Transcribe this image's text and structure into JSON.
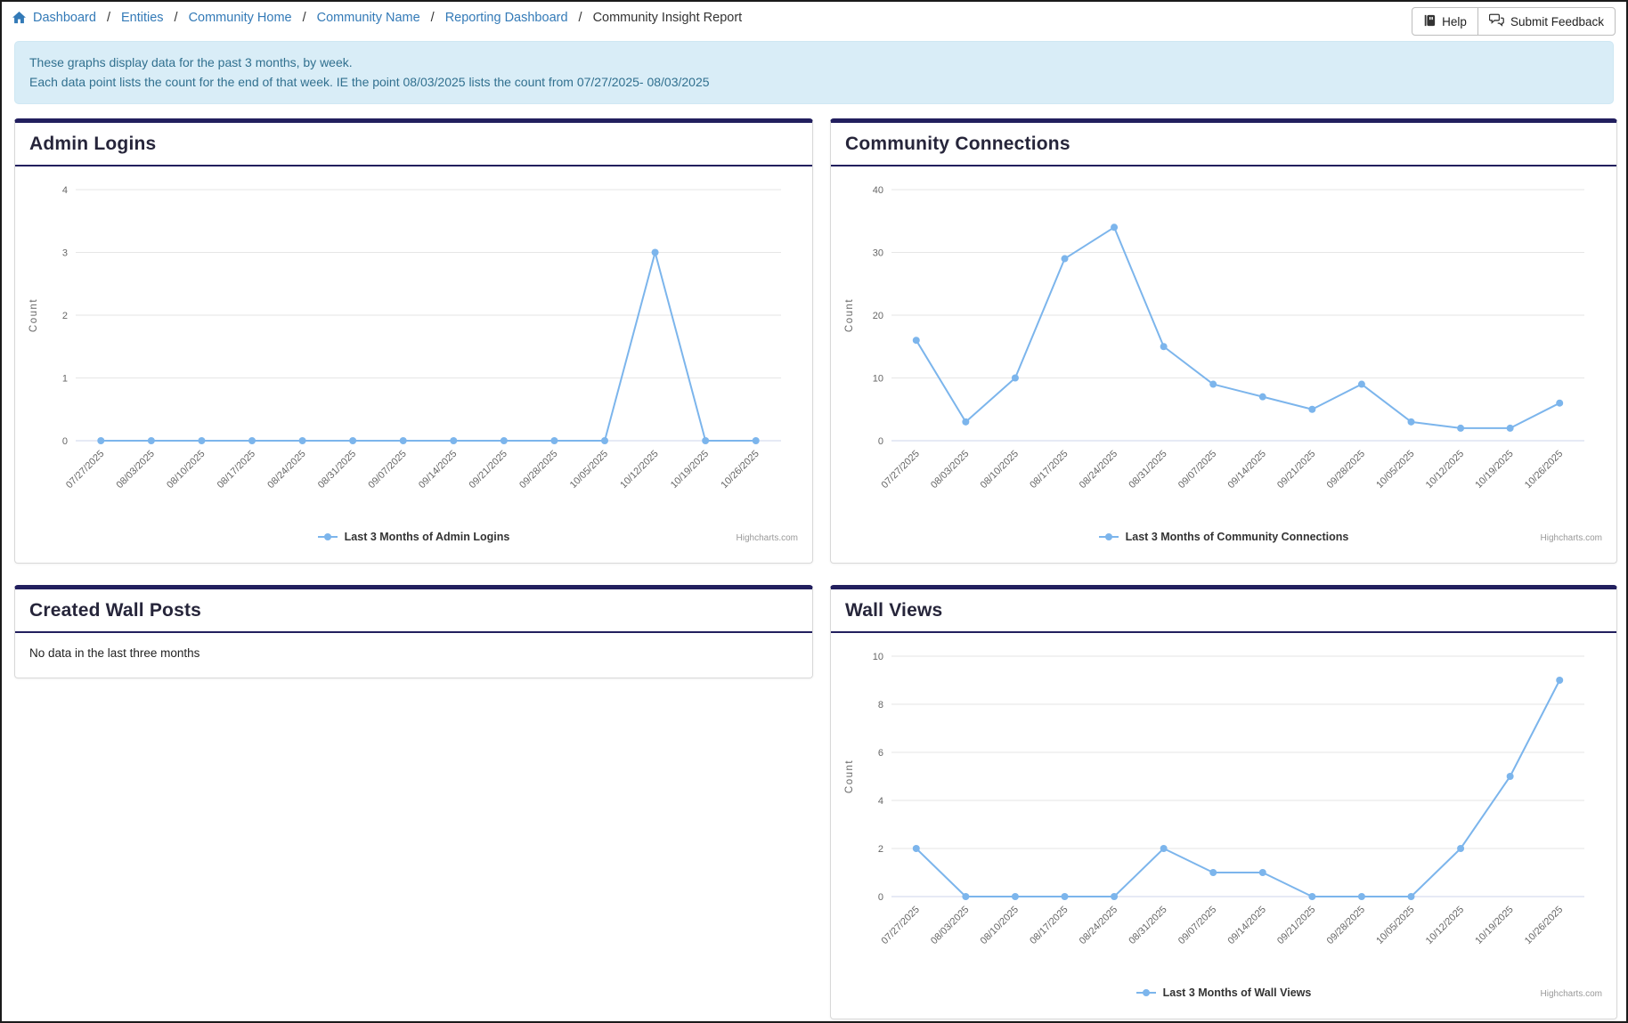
{
  "breadcrumb": {
    "items": [
      "Dashboard",
      "Entities",
      "Community Home",
      "Community Name",
      "Reporting Dashboard"
    ],
    "separator": "/",
    "current": "Community Insight Report"
  },
  "toolbar": {
    "help_label": "Help",
    "feedback_label": "Submit Feedback"
  },
  "banner": {
    "line1": "These graphs display data for the past 3 months, by week.",
    "line2": "Each data point lists the count for the end of that week. IE the point 08/03/2025 lists the count from 07/27/2025- 08/03/2025"
  },
  "panels": {
    "admin_logins": {
      "title": "Admin Logins"
    },
    "community_connections": {
      "title": "Community Connections"
    },
    "created_wall_posts": {
      "title": "Created Wall Posts",
      "empty_message": "No data in the last three months"
    },
    "wall_views": {
      "title": "Wall Views"
    }
  },
  "colors": {
    "accent_navy": "#221f5e",
    "line_blue": "#7cb5ec",
    "banner_bg": "#d9edf7",
    "banner_text": "#31708f",
    "link_blue": "#337ab7",
    "grid_line": "#e6e6e6",
    "axis_line": "#ccd6eb"
  },
  "chart_data": [
    {
      "type": "line",
      "title": "Admin Logins",
      "legend": "Last 3 Months of Admin Logins",
      "credits": "Highcharts.com",
      "xlabel": "",
      "ylabel": "Count",
      "ylim": [
        0,
        4
      ],
      "yticks": [
        0,
        1,
        2,
        3,
        4
      ],
      "grid": true,
      "legend_position": "bottom-center",
      "line_color": "#7cb5ec",
      "categories": [
        "07/27/2025",
        "08/03/2025",
        "08/10/2025",
        "08/17/2025",
        "08/24/2025",
        "08/31/2025",
        "09/07/2025",
        "09/14/2025",
        "09/21/2025",
        "09/28/2025",
        "10/05/2025",
        "10/12/2025",
        "10/19/2025",
        "10/26/2025"
      ],
      "values": [
        0,
        0,
        0,
        0,
        0,
        0,
        0,
        0,
        0,
        0,
        0,
        3,
        0,
        0
      ]
    },
    {
      "type": "line",
      "title": "Community Connections",
      "legend": "Last 3 Months of Community Connections",
      "credits": "Highcharts.com",
      "xlabel": "",
      "ylabel": "Count",
      "ylim": [
        0,
        40
      ],
      "yticks": [
        0,
        10,
        20,
        30,
        40
      ],
      "grid": true,
      "legend_position": "bottom-center",
      "line_color": "#7cb5ec",
      "categories": [
        "07/27/2025",
        "08/03/2025",
        "08/10/2025",
        "08/17/2025",
        "08/24/2025",
        "08/31/2025",
        "09/07/2025",
        "09/14/2025",
        "09/21/2025",
        "09/28/2025",
        "10/05/2025",
        "10/12/2025",
        "10/19/2025",
        "10/26/2025"
      ],
      "values": [
        16,
        3,
        10,
        29,
        34,
        15,
        9,
        7,
        5,
        9,
        3,
        2,
        2,
        6
      ]
    },
    {
      "type": "line",
      "title": "Wall Views",
      "legend": "Last 3 Months of Wall Views",
      "credits": "Highcharts.com",
      "xlabel": "",
      "ylabel": "Count",
      "ylim": [
        0,
        10
      ],
      "yticks": [
        0,
        2,
        4,
        6,
        8,
        10
      ],
      "grid": true,
      "legend_position": "bottom-center",
      "line_color": "#7cb5ec",
      "categories": [
        "07/27/2025",
        "08/03/2025",
        "08/10/2025",
        "08/17/2025",
        "08/24/2025",
        "08/31/2025",
        "09/07/2025",
        "09/14/2025",
        "09/21/2025",
        "09/28/2025",
        "10/05/2025",
        "10/12/2025",
        "10/19/2025",
        "10/26/2025"
      ],
      "values": [
        2,
        0,
        0,
        0,
        0,
        2,
        1,
        1,
        0,
        0,
        0,
        2,
        5,
        9
      ]
    }
  ]
}
